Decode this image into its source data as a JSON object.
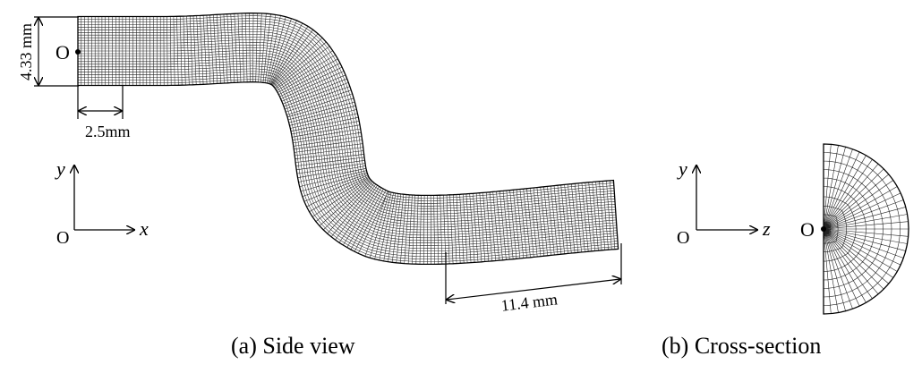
{
  "figure": {
    "side_view": {
      "caption": "(a) Side view",
      "origin_label": "O",
      "height_dim": "4.33 mm",
      "inlet_dim": "2.5mm",
      "outlet_dim": "11.4 mm",
      "axes": {
        "origin": "O",
        "horizontal": "x",
        "vertical": "y"
      }
    },
    "cross_section": {
      "caption": "(b) Cross-section",
      "origin_label": "O",
      "axes": {
        "origin": "O",
        "horizontal": "z",
        "vertical": "y"
      }
    },
    "colors": {
      "mesh": "#222222",
      "outline": "#000000",
      "background": "#ffffff"
    }
  }
}
